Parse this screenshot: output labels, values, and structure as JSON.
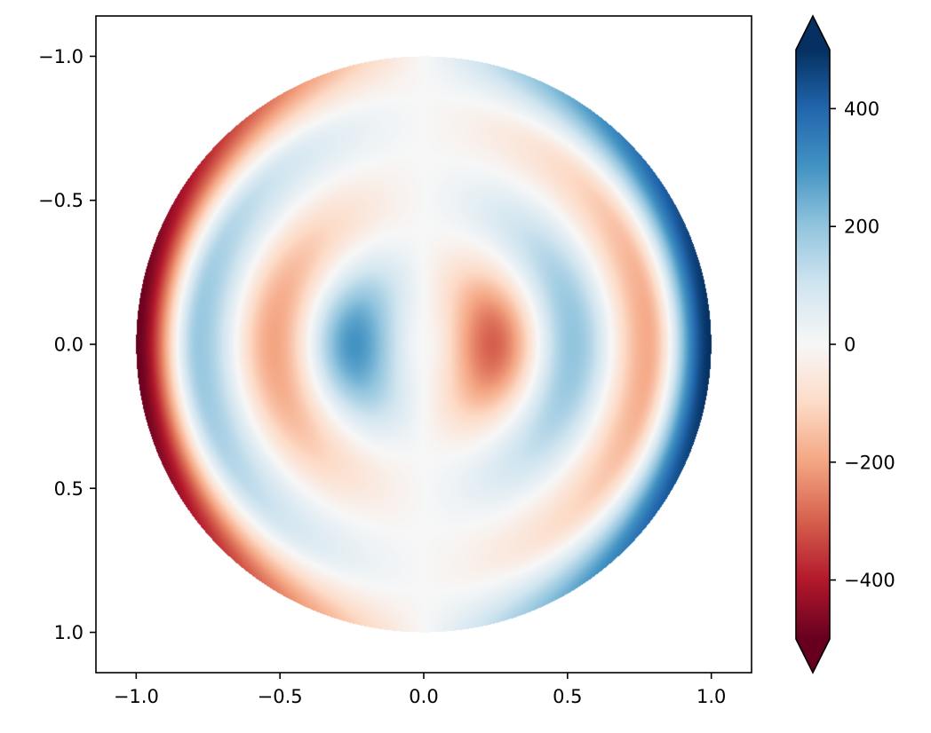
{
  "chart_data": {
    "type": "heatmap",
    "title": "",
    "xlabel": "",
    "ylabel": "",
    "xlim": [
      -1.14,
      1.14
    ],
    "ylim": [
      1.14,
      -1.14
    ],
    "y_axis_inverted": true,
    "aspect": "equal",
    "grid": false,
    "x_ticks": [
      -1.0,
      -0.5,
      0.0,
      0.5,
      1.0
    ],
    "x_tick_labels": [
      "−1.0",
      "−0.5",
      "0.0",
      "0.5",
      "1.0"
    ],
    "y_ticks": [
      -1.0,
      -0.5,
      0.0,
      0.5,
      1.0
    ],
    "y_tick_labels": [
      "−1.0",
      "−0.5",
      "0.0",
      "0.5",
      "1.0"
    ],
    "domain": "unit disk (x^2 + y^2 <= 1)",
    "colormap": "RdBu",
    "colormap_stops": [
      "#67001f",
      "#b2182b",
      "#d6604d",
      "#f4a582",
      "#fddbc7",
      "#f7f7f7",
      "#d1e5f0",
      "#92c5de",
      "#4393c3",
      "#2166ac",
      "#053061"
    ],
    "color_range": [
      -500,
      500
    ],
    "colorbar": {
      "placement": "right",
      "extend": "both",
      "ticks": [
        -400,
        -200,
        0,
        200,
        400
      ],
      "tick_labels": [
        "−400",
        "−200",
        "0",
        "200",
        "400"
      ]
    },
    "features": [
      {
        "x": -0.24,
        "y": 0.0,
        "value": 350
      },
      {
        "x": 0.24,
        "y": 0.0,
        "value": -300
      },
      {
        "x": -0.52,
        "y": 0.0,
        "value": -200
      },
      {
        "x": 0.52,
        "y": 0.0,
        "value": 200
      },
      {
        "x": -0.78,
        "y": 0.0,
        "value": 210
      },
      {
        "x": 0.78,
        "y": 0.0,
        "value": -190
      },
      {
        "x": -1.0,
        "y": 0.0,
        "value": -500
      },
      {
        "x": 1.0,
        "y": 0.0,
        "value": 500
      }
    ]
  }
}
